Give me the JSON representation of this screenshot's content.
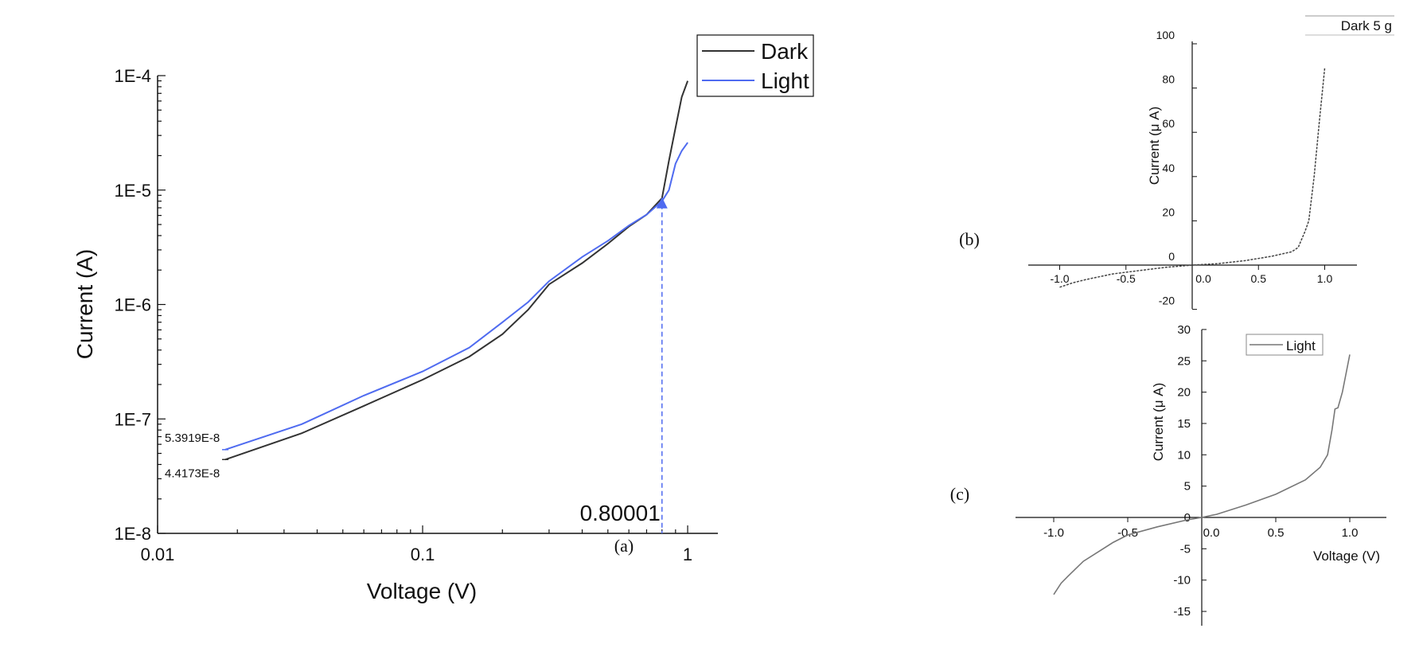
{
  "chart_data": [
    {
      "panel": "(a)",
      "type": "line",
      "xscale": "log",
      "yscale": "log",
      "xlabel": "Voltage (V)",
      "ylabel": "Current (A)",
      "xlim": [
        0.01,
        1.3
      ],
      "ylim": [
        1e-08,
        0.0001
      ],
      "xticks": [
        "0.01",
        "0.1",
        "1"
      ],
      "yticks": [
        "1E-8",
        "1E-7",
        "1E-6",
        "1E-5",
        "1E-4"
      ],
      "legend": "top-right",
      "series": [
        {
          "name": "Dark",
          "color": "#333333",
          "x": [
            0.018,
            0.035,
            0.06,
            0.1,
            0.15,
            0.2,
            0.25,
            0.3,
            0.4,
            0.5,
            0.6,
            0.7,
            0.8,
            0.85,
            0.9,
            0.95,
            1.0
          ],
          "y": [
            4.4173e-08,
            7.5e-08,
            1.3e-07,
            2.2e-07,
            3.5e-07,
            5.5e-07,
            9e-07,
            1.5e-06,
            2.3e-06,
            3.4e-06,
            4.8e-06,
            6.1e-06,
            8.5e-06,
            1.8e-05,
            3.5e-05,
            6.5e-05,
            9e-05
          ]
        },
        {
          "name": "Light",
          "color": "#4f6bf0",
          "x": [
            0.018,
            0.035,
            0.06,
            0.1,
            0.15,
            0.2,
            0.25,
            0.3,
            0.4,
            0.5,
            0.6,
            0.7,
            0.8,
            0.85,
            0.9,
            0.95,
            1.0
          ],
          "y": [
            5.3919e-08,
            9e-08,
            1.6e-07,
            2.6e-07,
            4.2e-07,
            7e-07,
            1.05e-06,
            1.6e-06,
            2.6e-06,
            3.6e-06,
            4.9e-06,
            6.1e-06,
            8e-06,
            1e-05,
            1.7e-05,
            2.2e-05,
            2.6e-05
          ]
        }
      ],
      "annotations": [
        {
          "text": "5.3919E-8",
          "x": 0.018,
          "y": 5.3919e-08
        },
        {
          "text": "4.4173E-8",
          "x": 0.018,
          "y": 4.4173e-08
        },
        {
          "text": "0.80001",
          "x": 0.80001,
          "y": 7.5e-06
        }
      ]
    },
    {
      "panel": "(b)",
      "type": "line",
      "xlabel": "",
      "ylabel": "Current (μ A)",
      "xlim": [
        -1.25,
        1.25
      ],
      "ylim": [
        -20,
        100
      ],
      "xticks": [
        "-1.0",
        "-0.5",
        "0.0",
        "0.5",
        "1.0"
      ],
      "yticks": [
        "-20",
        "0",
        "20",
        "40",
        "60",
        "80",
        "100"
      ],
      "legend": "top-right",
      "series": [
        {
          "name": "Dark 5 g",
          "color": "#444444",
          "x": [
            -1.0,
            -0.9,
            -0.8,
            -0.6,
            -0.4,
            -0.2,
            0.0,
            0.2,
            0.4,
            0.6,
            0.75,
            0.8,
            0.85,
            0.88,
            0.92,
            0.96,
            1.0
          ],
          "y": [
            -10,
            -8,
            -6.5,
            -4,
            -2.5,
            -1,
            0,
            0.7,
            2,
            4,
            6,
            8,
            15,
            20,
            40,
            65,
            89
          ]
        }
      ]
    },
    {
      "panel": "(c)",
      "type": "line",
      "xlabel": "Voltage (V)",
      "ylabel": "Current (μ A)",
      "xlim": [
        -1.25,
        1.25
      ],
      "ylim": [
        -17,
        30
      ],
      "xticks": [
        "-1.0",
        "-0.5",
        "0.0",
        "0.5",
        "1.0"
      ],
      "yticks": [
        "-15",
        "-10",
        "-5",
        "0",
        "5",
        "10",
        "15",
        "20",
        "25",
        "30"
      ],
      "legend": "top-center",
      "series": [
        {
          "name": "Light",
          "color": "#777777",
          "x": [
            -1.0,
            -0.95,
            -0.9,
            -0.8,
            -0.7,
            -0.6,
            -0.5,
            -0.3,
            -0.1,
            0.0,
            0.1,
            0.3,
            0.5,
            0.7,
            0.8,
            0.85,
            0.88,
            0.9,
            0.92,
            0.95,
            1.0
          ],
          "y": [
            -12.3,
            -10.5,
            -9.3,
            -7,
            -5.5,
            -4,
            -2.8,
            -1.5,
            -0.4,
            0,
            0.5,
            2,
            3.7,
            6,
            8,
            10,
            14,
            17.3,
            17.5,
            20,
            26
          ]
        }
      ]
    }
  ],
  "labels": {
    "panel_a": "(a)",
    "panel_b": "(b)",
    "panel_c": "(c)"
  }
}
